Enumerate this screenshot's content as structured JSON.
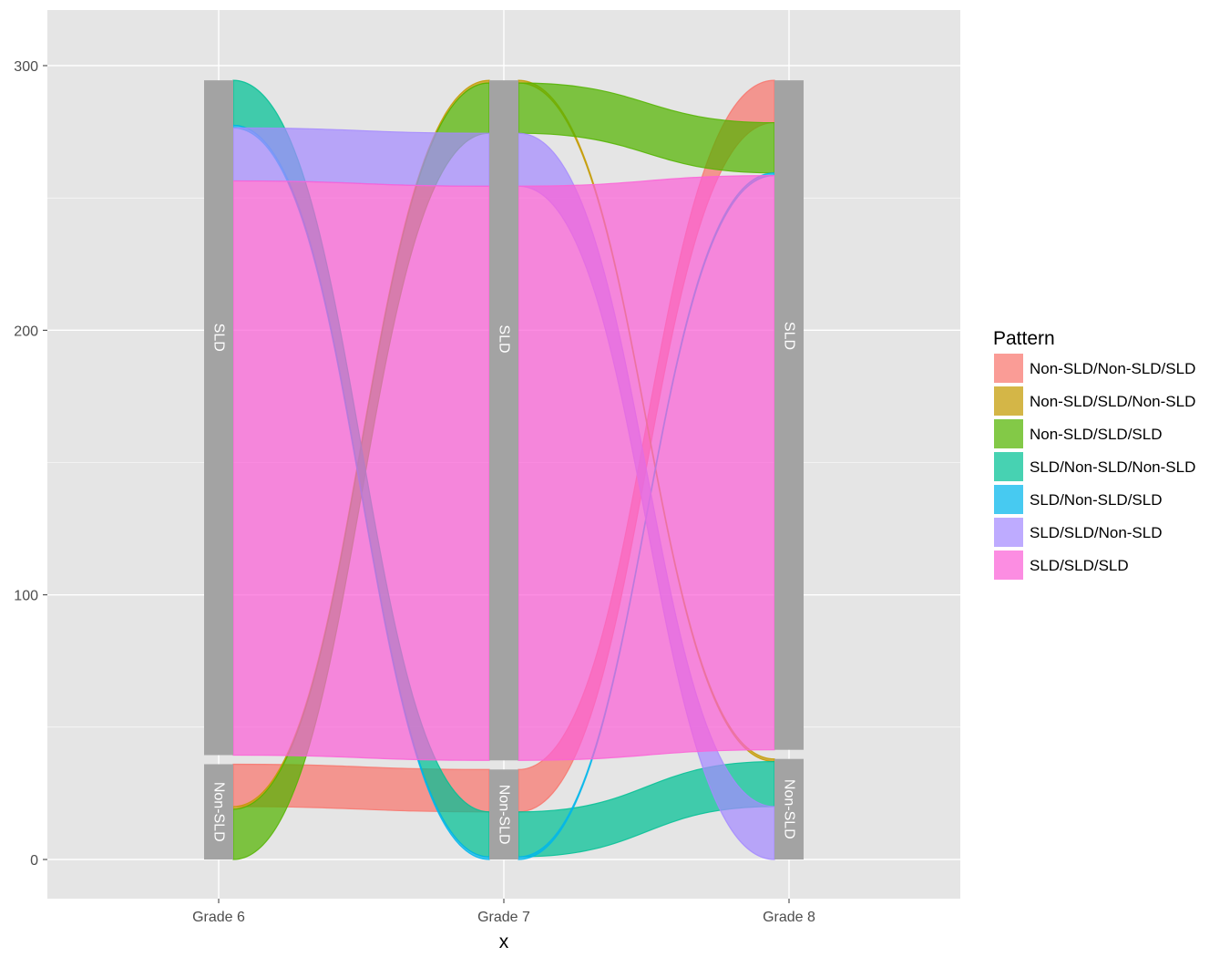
{
  "chart_data": {
    "type": "alluvial",
    "xlabel": "x",
    "ylabel": "",
    "axes": [
      "Grade 6",
      "Grade 7",
      "Grade 8"
    ],
    "ylim": [
      -15,
      320
    ],
    "yticks": [
      0,
      100,
      200,
      300
    ],
    "grid": true,
    "legend": {
      "title": "Pattern",
      "position": "right"
    },
    "strata": {
      "order_bottom_to_top": [
        "Non-SLD",
        "SLD"
      ],
      "labels": [
        "Non-SLD",
        "SLD"
      ]
    },
    "series": [
      {
        "name": "Non-SLD/Non-SLD/SLD",
        "path": [
          "Non-SLD",
          "Non-SLD",
          "SLD"
        ],
        "value": 16,
        "color": "#F8766D"
      },
      {
        "name": "Non-SLD/SLD/Non-SLD",
        "path": [
          "Non-SLD",
          "SLD",
          "Non-SLD"
        ],
        "value": 1,
        "color": "#C49A00"
      },
      {
        "name": "Non-SLD/SLD/SLD",
        "path": [
          "Non-SLD",
          "SLD",
          "SLD"
        ],
        "value": 19,
        "color": "#53B400"
      },
      {
        "name": "SLD/Non-SLD/Non-SLD",
        "path": [
          "SLD",
          "Non-SLD",
          "Non-SLD"
        ],
        "value": 17,
        "color": "#00C094"
      },
      {
        "name": "SLD/Non-SLD/SLD",
        "path": [
          "SLD",
          "Non-SLD",
          "SLD"
        ],
        "value": 1,
        "color": "#00B6EB"
      },
      {
        "name": "SLD/SLD/Non-SLD",
        "path": [
          "SLD",
          "SLD",
          "Non-SLD"
        ],
        "value": 20,
        "color": "#A58AFF"
      },
      {
        "name": "SLD/SLD/SLD",
        "path": [
          "SLD",
          "SLD",
          "SLD"
        ],
        "value": 217,
        "color": "#FB61D7"
      }
    ]
  },
  "colors": {
    "panel": "#e5e5e5",
    "grid": "#ffffff",
    "stratum": "#a3a3a3"
  }
}
